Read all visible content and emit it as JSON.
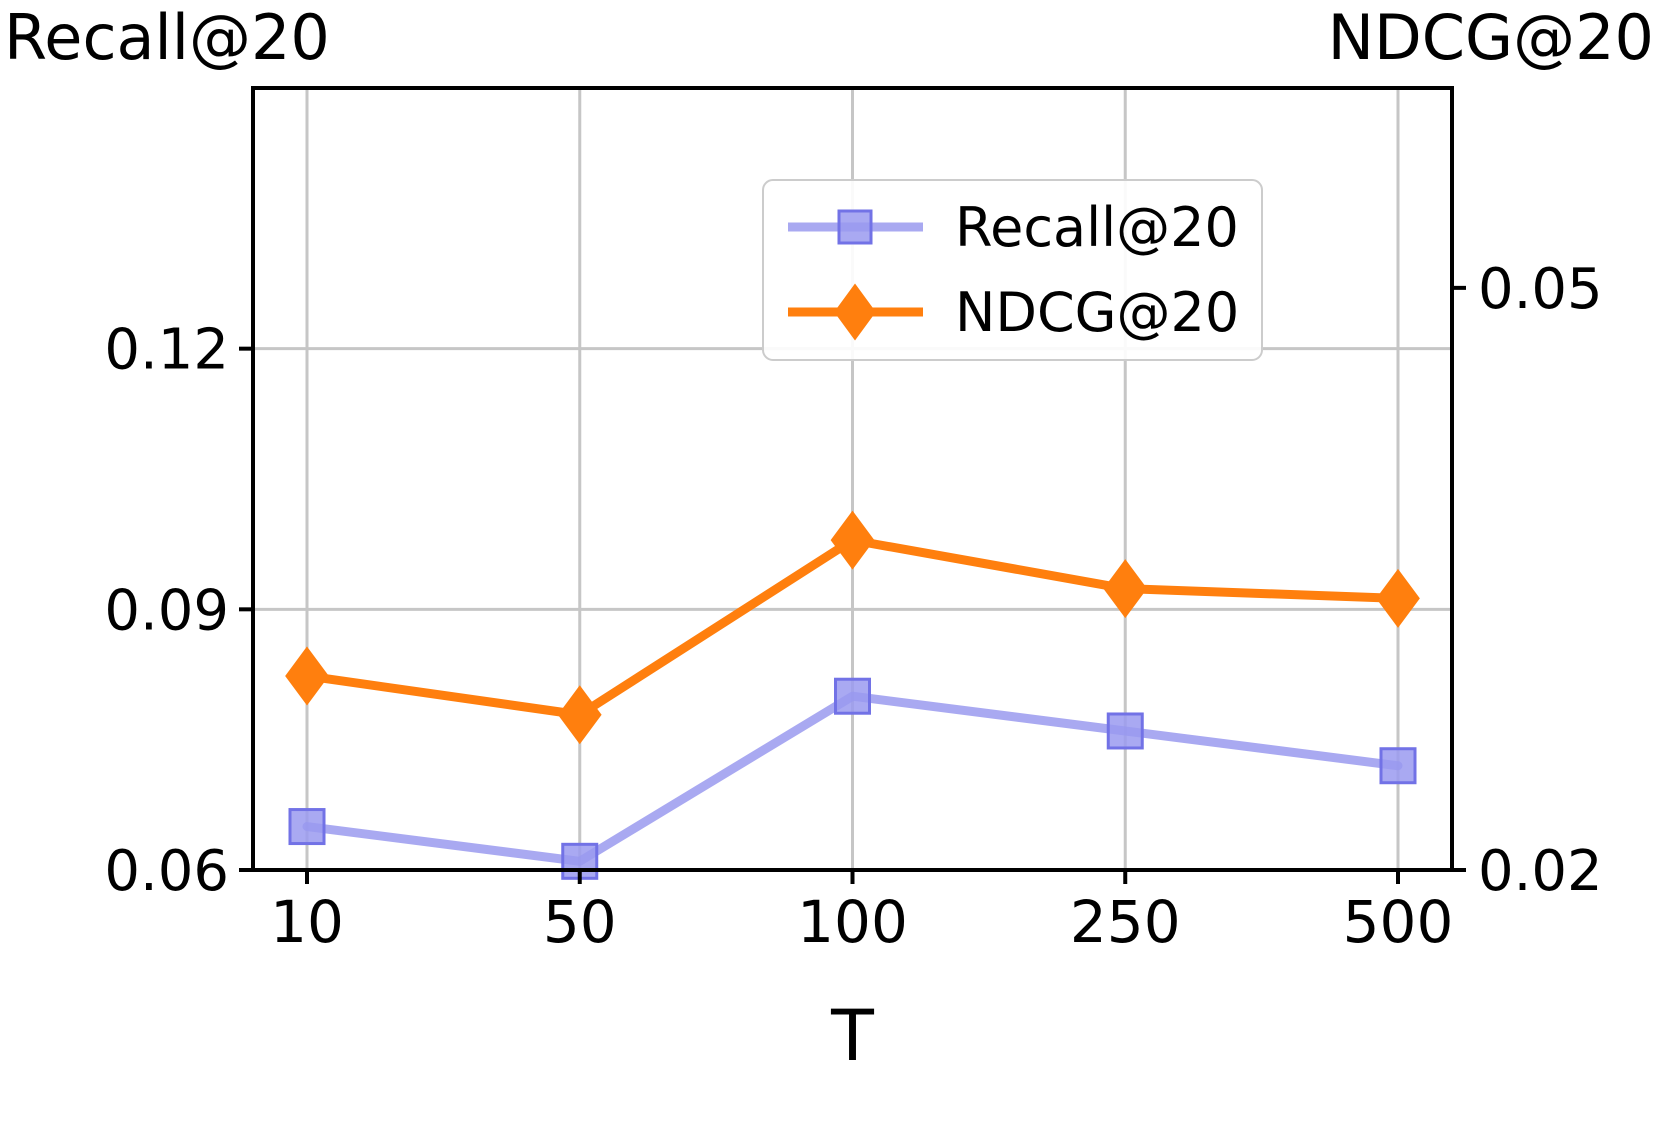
{
  "chart_data": {
    "type": "line",
    "title": "",
    "xlabel": "T",
    "left_axis_title": "Recall@20",
    "right_axis_title": "NDCG@20",
    "categories": [
      "10",
      "50",
      "100",
      "250",
      "500"
    ],
    "left_axis": {
      "ticks": [
        0.06,
        0.09,
        0.12
      ],
      "tick_labels": [
        "0.06",
        "0.09",
        "0.12"
      ],
      "ylim": [
        0.06,
        0.15
      ]
    },
    "right_axis": {
      "ticks": [
        0.02,
        0.05
      ],
      "tick_labels": [
        "0.02",
        "0.05"
      ],
      "ylim": [
        0.02,
        0.0603
      ]
    },
    "series": [
      {
        "name": "Recall@20",
        "axis": "left",
        "marker": "square",
        "line_color": "#8888ec",
        "line_opacity": 0.72,
        "marker_fill": "#9a9af0",
        "marker_fill_opacity": 0.85,
        "marker_edge": "#7272e6",
        "values": [
          0.065,
          0.061,
          0.08,
          0.076,
          0.072
        ]
      },
      {
        "name": "NDCG@20",
        "axis": "right",
        "marker": "diamond",
        "line_color": "#ff7f0e",
        "line_opacity": 1,
        "marker_fill": "#ff7f0e",
        "marker_fill_opacity": 1,
        "marker_edge": "#ff7f0e",
        "values": [
          0.03,
          0.028,
          0.037,
          0.0345,
          0.034
        ]
      }
    ],
    "legend": {
      "position": "upper right",
      "entries": [
        "Recall@20",
        "NDCG@20"
      ]
    },
    "grid": true,
    "colors": {
      "grid": "#c6c6c6",
      "axis": "#000000",
      "legend_border": "#cccccc",
      "legend_bg": "#ffffff"
    }
  }
}
